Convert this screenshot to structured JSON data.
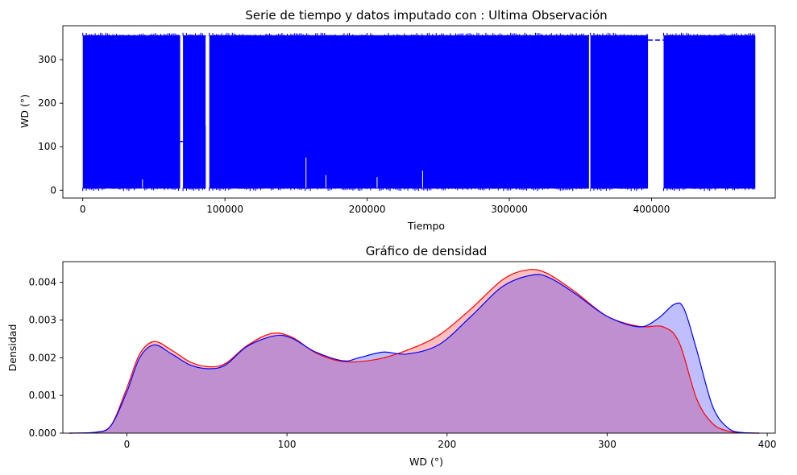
{
  "chart_data": [
    {
      "type": "line",
      "title": "Serie de tiempo y datos imputado con : Ultima Observación",
      "xlabel": "Tiempo",
      "ylabel": "WD (°)",
      "xlim": [
        -14000,
        487000
      ],
      "ylim": [
        -18,
        378
      ],
      "x_ticks": [
        0,
        100000,
        200000,
        300000,
        400000
      ],
      "x_tick_labels": [
        "0",
        "100000",
        "200000",
        "300000",
        "400000"
      ],
      "y_ticks": [
        0,
        100,
        200,
        300
      ],
      "y_tick_labels": [
        "0",
        "100",
        "200",
        "300"
      ],
      "grid": false,
      "color": "#0000ff",
      "value_range": [
        0,
        360
      ],
      "data_segments": [
        [
          0,
          68500
        ],
        [
          70500,
          86500
        ],
        [
          89000,
          356000
        ],
        [
          357000,
          397500
        ],
        [
          408500,
          473000
        ]
      ],
      "imputed_constant_segments": [
        {
          "x": [
            397500,
            408500
          ],
          "y": 345
        },
        {
          "x": [
            68500,
            70500
          ],
          "y": 112
        }
      ],
      "vertical_gap_lines": [
        {
          "x": 86800,
          "y": [
            148,
            352
          ]
        },
        {
          "x": 356500,
          "y": [
            0,
            357
          ]
        }
      ],
      "notable_dips": [
        {
          "x": 42000,
          "y": 25
        },
        {
          "x": 157000,
          "y": 75
        },
        {
          "x": 171000,
          "y": 35
        },
        {
          "x": 207000,
          "y": 30
        },
        {
          "x": 239000,
          "y": 45
        }
      ]
    },
    {
      "type": "area",
      "title": "Gráfico de densidad",
      "xlabel": "WD (°)",
      "ylabel": "Densidad",
      "xlim": [
        -40,
        405
      ],
      "ylim": [
        0,
        0.00455
      ],
      "x_ticks": [
        0,
        100,
        200,
        300,
        400
      ],
      "x_tick_labels": [
        "0",
        "100",
        "200",
        "300",
        "400"
      ],
      "y_ticks": [
        0,
        0.001,
        0.002,
        0.003,
        0.004
      ],
      "y_tick_labels": [
        "0.000",
        "0.001",
        "0.002",
        "0.003",
        "0.004"
      ],
      "grid": false,
      "series": [
        {
          "color": "#ff0000",
          "fill": "rgba(255,0,0,0.25)",
          "x": [
            -36,
            -20,
            -10,
            0,
            8,
            17,
            28,
            40,
            52,
            62,
            75,
            90,
            103,
            118,
            135,
            155,
            175,
            195,
            215,
            235,
            250,
            262,
            280,
            300,
            320,
            335,
            345,
            356,
            366,
            376,
            386,
            395
          ],
          "y": [
            0,
            2e-05,
            0.0002,
            0.0012,
            0.0021,
            0.00243,
            0.0022,
            0.00188,
            0.00176,
            0.00186,
            0.00232,
            0.00264,
            0.00255,
            0.00213,
            0.0019,
            0.00195,
            0.0022,
            0.0026,
            0.0033,
            0.00408,
            0.00433,
            0.00425,
            0.00375,
            0.0031,
            0.00283,
            0.00282,
            0.0024,
            0.0009,
            0.00025,
            5e-05,
            5e-06,
            0
          ]
        },
        {
          "color": "#0000ff",
          "fill": "rgba(0,0,255,0.25)",
          "x": [
            -36,
            -20,
            -10,
            0,
            8,
            17,
            28,
            40,
            52,
            62,
            75,
            92,
            103,
            118,
            135,
            145,
            160,
            175,
            195,
            215,
            235,
            254,
            265,
            280,
            300,
            320,
            332,
            342,
            348,
            356,
            366,
            376,
            386,
            395
          ],
          "y": [
            0,
            2e-05,
            0.0002,
            0.0011,
            0.002,
            0.00234,
            0.0021,
            0.0018,
            0.00171,
            0.00182,
            0.0023,
            0.00258,
            0.00252,
            0.00215,
            0.00192,
            0.002,
            0.00215,
            0.0021,
            0.00235,
            0.0031,
            0.0039,
            0.0042,
            0.0041,
            0.0037,
            0.0031,
            0.00282,
            0.00305,
            0.00342,
            0.0033,
            0.0022,
            0.0007,
            0.00012,
            1e-05,
            0
          ]
        }
      ]
    }
  ]
}
